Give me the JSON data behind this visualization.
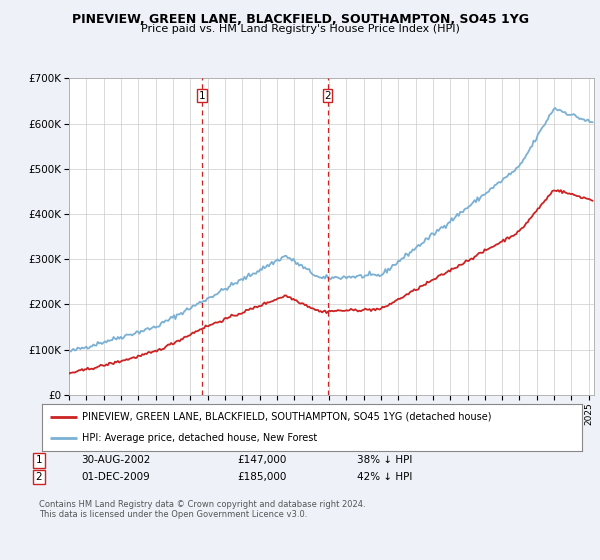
{
  "title": "PINEVIEW, GREEN LANE, BLACKFIELD, SOUTHAMPTON, SO45 1YG",
  "subtitle": "Price paid vs. HM Land Registry's House Price Index (HPI)",
  "hpi_color": "#7ab0d4",
  "sale_color": "#cc2222",
  "vline_color": "#cc2222",
  "background_color": "#eef2f8",
  "plot_bg": "#ffffff",
  "ylim": [
    0,
    700000
  ],
  "yticks": [
    0,
    100000,
    200000,
    300000,
    400000,
    500000,
    600000,
    700000
  ],
  "ytick_labels": [
    "£0",
    "£100K",
    "£200K",
    "£300K",
    "£400K",
    "£500K",
    "£600K",
    "£700K"
  ],
  "sale1_x": 2002.66,
  "sale1_label": "1",
  "sale1_price": 147000,
  "sale2_x": 2009.92,
  "sale2_label": "2",
  "sale2_price": 185000,
  "legend_entry1": "PINEVIEW, GREEN LANE, BLACKFIELD, SOUTHAMPTON, SO45 1YG (detached house)",
  "legend_entry2": "HPI: Average price, detached house, New Forest",
  "table_row1_num": "1",
  "table_row1_date": "30-AUG-2002",
  "table_row1_price": "£147,000",
  "table_row1_pct": "38% ↓ HPI",
  "table_row2_num": "2",
  "table_row2_date": "01-DEC-2009",
  "table_row2_price": "£185,000",
  "table_row2_pct": "42% ↓ HPI",
  "footer1": "Contains HM Land Registry data © Crown copyright and database right 2024.",
  "footer2": "This data is licensed under the Open Government Licence v3.0."
}
